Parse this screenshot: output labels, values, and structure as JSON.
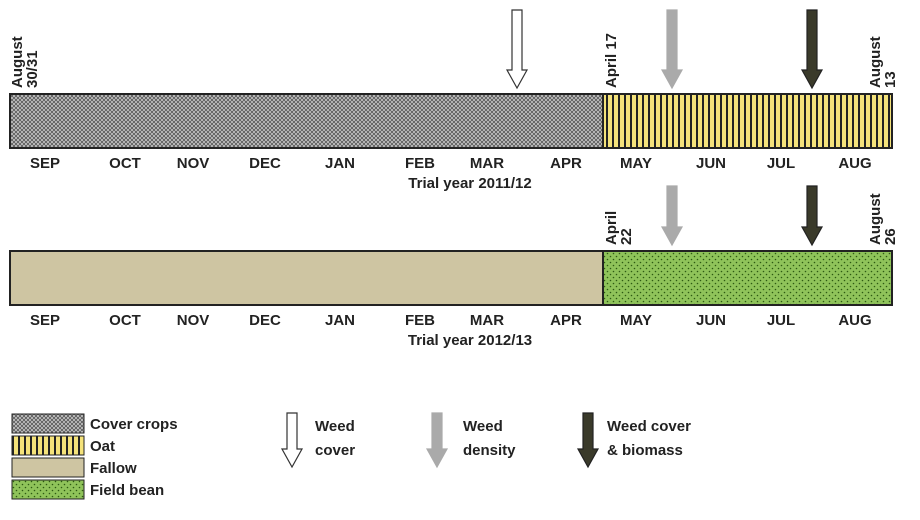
{
  "timelines": [
    {
      "start_label": [
        "August",
        "30/31"
      ],
      "mid_label": [
        "April 17"
      ],
      "end_label": [
        "August",
        "13"
      ],
      "months": [
        "SEP",
        "OCT",
        "NOV",
        "DEC",
        "JAN",
        "FEB",
        "MAR",
        "APR",
        "MAY",
        "JUN",
        "JUL",
        "AUG"
      ],
      "caption": "Trial year 2011/12"
    },
    {
      "mid_label": [
        "April",
        "22"
      ],
      "end_label": [
        "August",
        "26"
      ],
      "months": [
        "SEP",
        "OCT",
        "NOV",
        "DEC",
        "JAN",
        "FEB",
        "MAR",
        "APR",
        "MAY",
        "JUN",
        "JUL",
        "AUG"
      ],
      "caption": "Trial year 2012/13"
    }
  ],
  "legend": {
    "crops": [
      "Cover crops",
      "Oat",
      "Fallow",
      "Field bean"
    ],
    "arrows": [
      [
        "Weed",
        "cover"
      ],
      [
        "Weed",
        "density"
      ],
      [
        "Weed cover",
        "& biomass"
      ]
    ]
  }
}
